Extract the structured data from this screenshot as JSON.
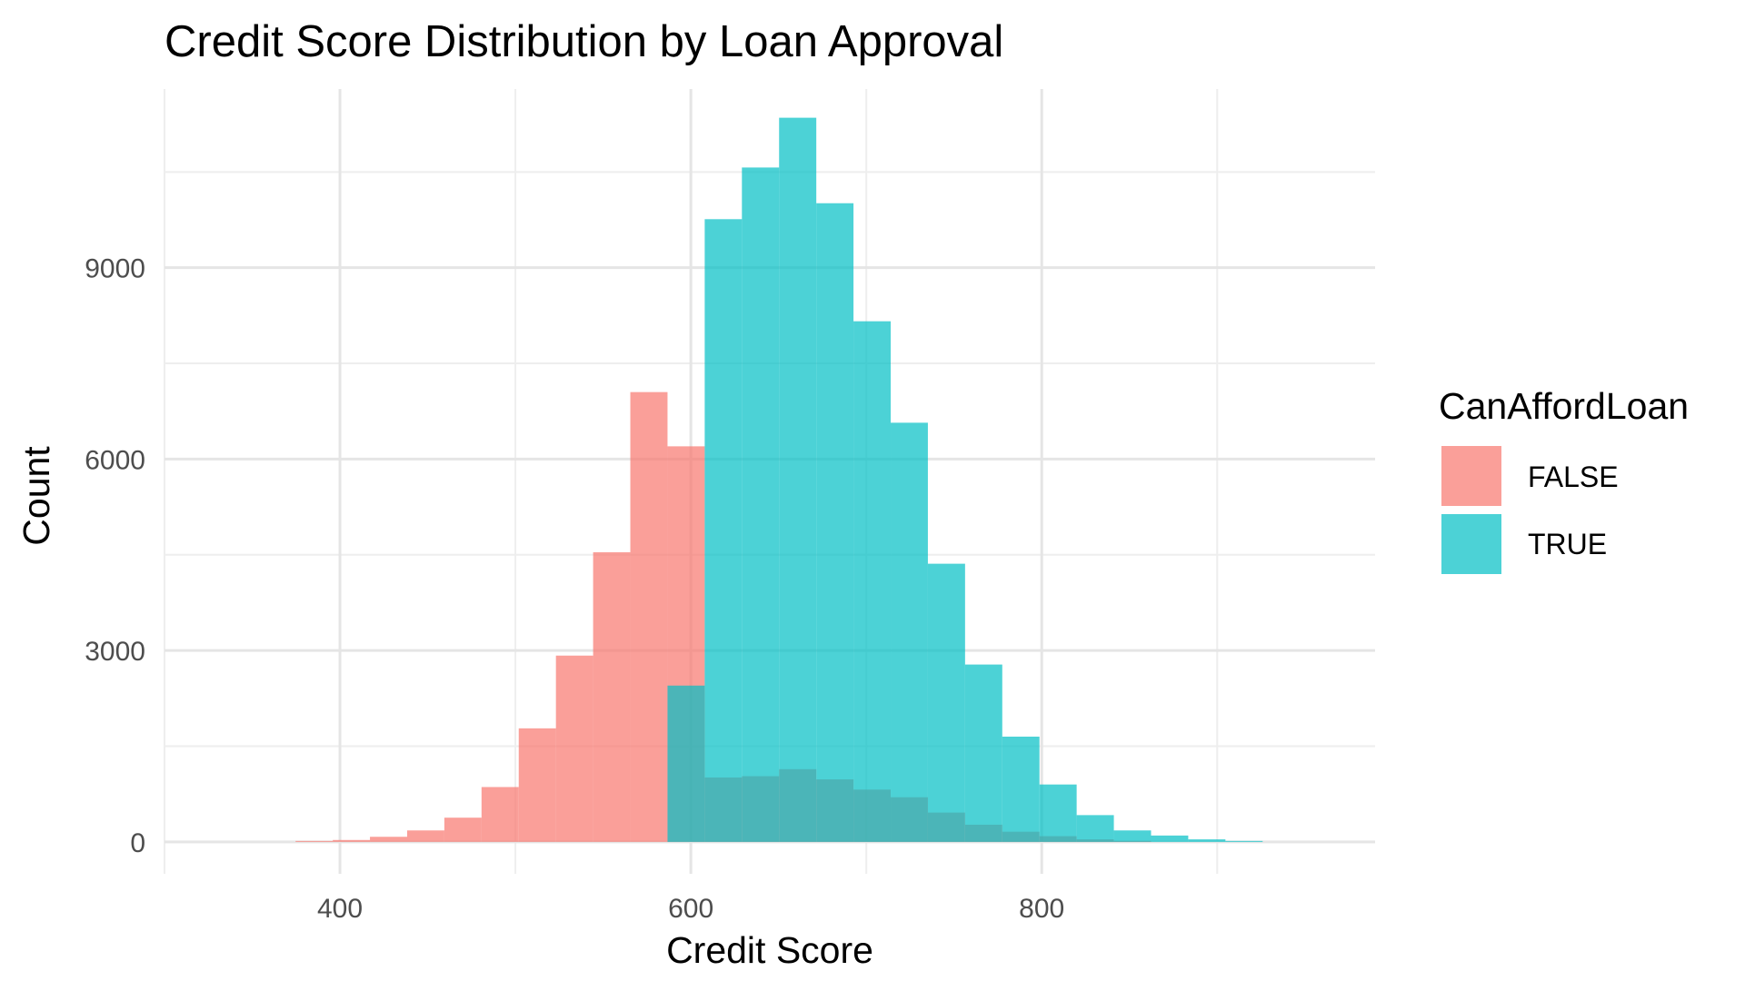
{
  "chart_data": {
    "type": "bar",
    "subtype": "overlapping-histogram",
    "title": "Credit Score Distribution by Loan Approval",
    "xlabel": "Credit Score",
    "ylabel": "Count",
    "xlim": [
      300,
      990
    ],
    "ylim": [
      -500,
      11800
    ],
    "x_ticks": [
      400,
      600,
      800
    ],
    "y_ticks": [
      0,
      3000,
      6000,
      9000
    ],
    "grid": true,
    "bin_width": 21.2,
    "legend": {
      "title": "CanAffordLoan",
      "placement": "right"
    },
    "series": [
      {
        "name": "FALSE",
        "color": "#F8766D",
        "opacity": 0.7,
        "bins": [
          {
            "x0": 374.7,
            "x1": 395.9,
            "count": 15
          },
          {
            "x0": 395.9,
            "x1": 417.1,
            "count": 30
          },
          {
            "x0": 417.1,
            "x1": 438.3,
            "count": 80
          },
          {
            "x0": 438.3,
            "x1": 459.5,
            "count": 180
          },
          {
            "x0": 459.5,
            "x1": 480.7,
            "count": 380
          },
          {
            "x0": 480.7,
            "x1": 501.9,
            "count": 860
          },
          {
            "x0": 501.9,
            "x1": 523.1,
            "count": 1780
          },
          {
            "x0": 523.1,
            "x1": 544.3,
            "count": 2920
          },
          {
            "x0": 544.3,
            "x1": 565.5,
            "count": 4540
          },
          {
            "x0": 565.5,
            "x1": 586.7,
            "count": 7050
          },
          {
            "x0": 586.7,
            "x1": 607.9,
            "count": 6200
          },
          {
            "x0": 607.9,
            "x1": 629.1,
            "count": 1010
          },
          {
            "x0": 629.1,
            "x1": 650.3,
            "count": 1030
          },
          {
            "x0": 650.3,
            "x1": 671.5,
            "count": 1140
          },
          {
            "x0": 671.5,
            "x1": 692.7,
            "count": 980
          },
          {
            "x0": 692.7,
            "x1": 713.9,
            "count": 820
          },
          {
            "x0": 713.9,
            "x1": 735.1,
            "count": 700
          },
          {
            "x0": 735.1,
            "x1": 756.3,
            "count": 460
          },
          {
            "x0": 756.3,
            "x1": 777.5,
            "count": 270
          },
          {
            "x0": 777.5,
            "x1": 798.7,
            "count": 160
          },
          {
            "x0": 798.7,
            "x1": 819.9,
            "count": 90
          },
          {
            "x0": 819.9,
            "x1": 841.1,
            "count": 40
          },
          {
            "x0": 841.1,
            "x1": 862.3,
            "count": 15
          }
        ]
      },
      {
        "name": "TRUE",
        "color": "#00BFC4",
        "opacity": 0.7,
        "bins": [
          {
            "x0": 586.7,
            "x1": 607.9,
            "count": 2450
          },
          {
            "x0": 607.9,
            "x1": 629.1,
            "count": 9760
          },
          {
            "x0": 629.1,
            "x1": 650.3,
            "count": 10570
          },
          {
            "x0": 650.3,
            "x1": 671.5,
            "count": 11350
          },
          {
            "x0": 671.5,
            "x1": 692.7,
            "count": 10010
          },
          {
            "x0": 692.7,
            "x1": 713.9,
            "count": 8160
          },
          {
            "x0": 713.9,
            "x1": 735.1,
            "count": 6570
          },
          {
            "x0": 735.1,
            "x1": 756.3,
            "count": 4360
          },
          {
            "x0": 756.3,
            "x1": 777.5,
            "count": 2780
          },
          {
            "x0": 777.5,
            "x1": 798.7,
            "count": 1650
          },
          {
            "x0": 798.7,
            "x1": 819.9,
            "count": 900
          },
          {
            "x0": 819.9,
            "x1": 841.1,
            "count": 420
          },
          {
            "x0": 841.1,
            "x1": 862.3,
            "count": 180
          },
          {
            "x0": 862.3,
            "x1": 883.5,
            "count": 100
          },
          {
            "x0": 883.5,
            "x1": 904.7,
            "count": 40
          },
          {
            "x0": 904.7,
            "x1": 925.9,
            "count": 15
          }
        ]
      }
    ]
  }
}
